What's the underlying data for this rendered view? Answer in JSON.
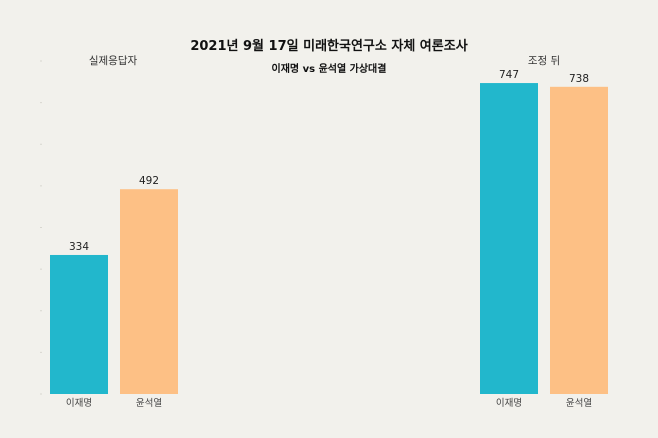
{
  "title": "2021년 9월 17일 미래한국연구소 자체 여론조사",
  "subtitle": "이재명 vs 윤석열 가상대결",
  "colors": {
    "background": "#f2f1ec",
    "이재명": "#22b7cc",
    "윤석열": "#fdc085"
  },
  "chart_data": [
    {
      "type": "bar",
      "title": "실제응답자",
      "categories": [
        "이재명",
        "윤석열"
      ],
      "values": [
        334,
        492
      ],
      "ylim": [
        0,
        800
      ],
      "grid": false
    },
    {
      "type": "bar",
      "title": "조정 뒤",
      "categories": [
        "이재명",
        "윤석열"
      ],
      "values": [
        747,
        738
      ],
      "ylim": [
        0,
        800
      ],
      "grid": false
    }
  ]
}
